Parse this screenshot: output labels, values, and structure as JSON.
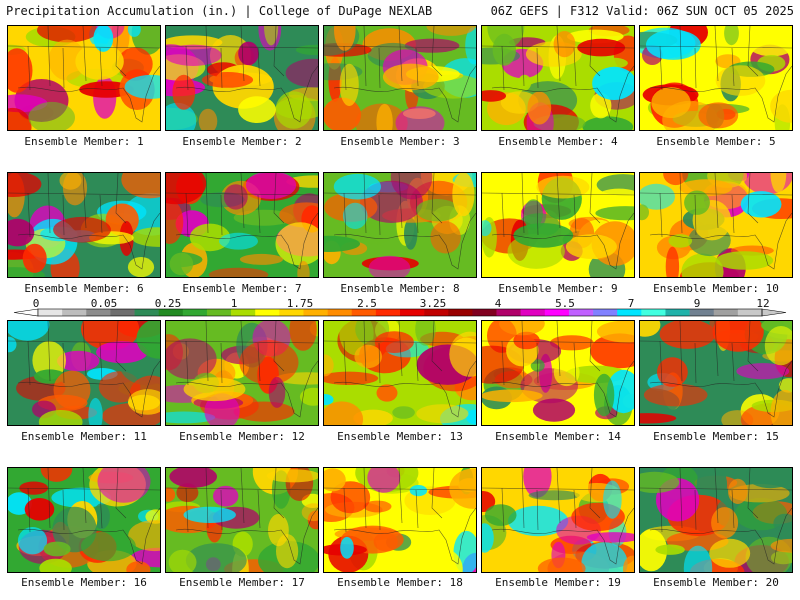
{
  "header": {
    "left": "Precipitation Accumulation (in.) | College of DuPage NEXLAB",
    "right": "06Z GEFS | F312 Valid: 06Z SUN OCT 05 2025"
  },
  "members": [
    "Ensemble Member: 1",
    "Ensemble Member: 2",
    "Ensemble Member: 3",
    "Ensemble Member: 4",
    "Ensemble Member: 5",
    "Ensemble Member: 6",
    "Ensemble Member: 7",
    "Ensemble Member: 8",
    "Ensemble Member: 9",
    "Ensemble Member: 10",
    "Ensemble Member: 11",
    "Ensemble Member: 12",
    "Ensemble Member: 13",
    "Ensemble Member: 14",
    "Ensemble Member: 15",
    "Ensemble Member: 16",
    "Ensemble Member: 17",
    "Ensemble Member: 18",
    "Ensemble Member: 19",
    "Ensemble Member: 20"
  ],
  "legend": {
    "ticks": [
      "0",
      "0.05",
      "0.25",
      "1",
      "1.75",
      "2.5",
      "3.25",
      "4",
      "5.5",
      "7",
      "9",
      "12"
    ],
    "colors": [
      "#e6e6e6",
      "#bdbdbd",
      "#8c8c8c",
      "#6e6e6e",
      "#2e8b57",
      "#228b22",
      "#32a832",
      "#66bb22",
      "#aadd00",
      "#ffff00",
      "#ffd700",
      "#ffb000",
      "#ff8c00",
      "#ff5a00",
      "#ff2a00",
      "#e60000",
      "#c00000",
      "#990000",
      "#800020",
      "#b0006a",
      "#e000c0",
      "#ff00ff",
      "#c060ff",
      "#8080ff",
      "#00e5ff",
      "#40ffe0",
      "#20b2aa",
      "#708090",
      "#a0a0a0",
      "#c8c8c8"
    ]
  },
  "palette": [
    "#2e8b57",
    "#32a832",
    "#66bb22",
    "#aadd00",
    "#ffff00",
    "#ffd700",
    "#ffb000",
    "#ff8c00",
    "#ff5a00",
    "#ff2a00",
    "#e60000",
    "#b0006a",
    "#e000c0",
    "#00e5ff"
  ]
}
